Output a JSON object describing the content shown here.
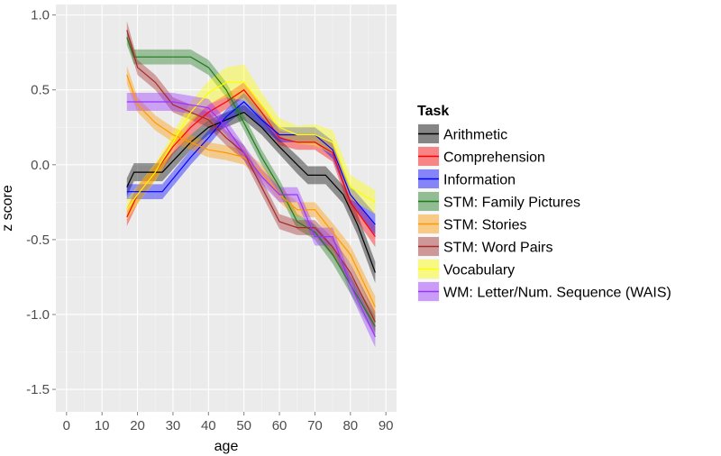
{
  "chart_data": {
    "type": "line",
    "title": "",
    "xlabel": "age",
    "ylabel": "z score",
    "xlim": [
      -3,
      93
    ],
    "ylim": [
      -1.65,
      1.07
    ],
    "x_ticks": [
      0,
      10,
      20,
      30,
      40,
      50,
      60,
      70,
      80,
      90
    ],
    "y_ticks": [
      -1.5,
      -1.0,
      -0.5,
      0.0,
      0.5,
      1.0
    ],
    "y_tick_labels": [
      "-1.5",
      "-1.0",
      "-0.5",
      "0.0",
      "0.5",
      "1.0"
    ],
    "grid": true,
    "ribbons": true,
    "legend_title": "Task",
    "legend_position": "right",
    "series": [
      {
        "name": "Arithmetic",
        "color": "#000000",
        "x": [
          17,
          19,
          27,
          35,
          40,
          45,
          50,
          55,
          60,
          65,
          68,
          73,
          78,
          82,
          87
        ],
        "y": [
          -0.15,
          -0.05,
          -0.05,
          0.15,
          0.25,
          0.3,
          0.35,
          0.25,
          0.12,
          -0.0,
          -0.07,
          -0.07,
          -0.2,
          -0.4,
          -0.72
        ],
        "band": [
          0.06,
          0.06,
          0.06,
          0.05,
          0.05,
          0.05,
          0.05,
          0.05,
          0.05,
          0.06,
          0.06,
          0.06,
          0.06,
          0.07,
          0.07
        ]
      },
      {
        "name": "Comprehension",
        "color": "#ff0000",
        "x": [
          17,
          20,
          25,
          30,
          35,
          40,
          45,
          50,
          55,
          60,
          65,
          70,
          75,
          80,
          87
        ],
        "y": [
          -0.35,
          -0.2,
          -0.05,
          0.12,
          0.25,
          0.35,
          0.42,
          0.5,
          0.35,
          0.18,
          0.15,
          0.15,
          0.08,
          -0.25,
          -0.48
        ],
        "band": [
          0.06,
          0.06,
          0.05,
          0.05,
          0.05,
          0.05,
          0.05,
          0.05,
          0.05,
          0.05,
          0.05,
          0.05,
          0.06,
          0.06,
          0.07
        ]
      },
      {
        "name": "Information",
        "color": "#0000ff",
        "x": [
          17,
          19,
          27,
          35,
          40,
          45,
          50,
          55,
          60,
          65,
          70,
          75,
          80,
          87
        ],
        "y": [
          -0.18,
          -0.18,
          -0.18,
          0.05,
          0.18,
          0.32,
          0.42,
          0.3,
          0.2,
          0.2,
          0.2,
          0.1,
          -0.2,
          -0.4
        ],
        "band": [
          0.05,
          0.05,
          0.05,
          0.05,
          0.05,
          0.05,
          0.06,
          0.05,
          0.05,
          0.05,
          0.05,
          0.06,
          0.06,
          0.07
        ]
      },
      {
        "name": "STM: Family Pictures",
        "color": "#1d7a1d",
        "x": [
          17,
          19,
          25,
          30,
          35,
          40,
          45,
          50,
          55,
          60,
          65,
          70,
          75,
          80,
          87
        ],
        "y": [
          0.85,
          0.72,
          0.72,
          0.72,
          0.72,
          0.65,
          0.5,
          0.28,
          0.05,
          -0.15,
          -0.38,
          -0.45,
          -0.6,
          -0.8,
          -1.08
        ],
        "band": [
          0.05,
          0.05,
          0.05,
          0.05,
          0.05,
          0.05,
          0.05,
          0.05,
          0.05,
          0.05,
          0.05,
          0.05,
          0.06,
          0.06,
          0.07
        ]
      },
      {
        "name": "STM: Stories",
        "color": "#ff9900",
        "x": [
          17,
          20,
          25,
          30,
          35,
          40,
          45,
          50,
          55,
          60,
          65,
          70,
          75,
          80,
          87
        ],
        "y": [
          0.6,
          0.4,
          0.28,
          0.2,
          0.15,
          0.1,
          0.08,
          0.05,
          -0.05,
          -0.2,
          -0.3,
          -0.3,
          -0.45,
          -0.6,
          -0.95
        ],
        "band": [
          0.06,
          0.05,
          0.05,
          0.05,
          0.05,
          0.05,
          0.05,
          0.05,
          0.05,
          0.05,
          0.05,
          0.05,
          0.06,
          0.06,
          0.07
        ]
      },
      {
        "name": "STM: Word Pairs",
        "color": "#a52a2a",
        "x": [
          17,
          20,
          25,
          30,
          35,
          40,
          45,
          50,
          55,
          60,
          65,
          70,
          75,
          80,
          87
        ],
        "y": [
          0.9,
          0.65,
          0.55,
          0.4,
          0.35,
          0.3,
          0.18,
          0.08,
          -0.15,
          -0.38,
          -0.42,
          -0.42,
          -0.55,
          -0.72,
          -1.05
        ],
        "band": [
          0.06,
          0.05,
          0.05,
          0.05,
          0.05,
          0.05,
          0.05,
          0.05,
          0.05,
          0.05,
          0.05,
          0.05,
          0.06,
          0.06,
          0.07
        ]
      },
      {
        "name": "Vocabulary",
        "color": "#ffff00",
        "x": [
          17,
          20,
          25,
          30,
          35,
          40,
          45,
          50,
          55,
          60,
          65,
          70,
          75,
          80,
          87
        ],
        "y": [
          -0.3,
          -0.2,
          -0.05,
          0.15,
          0.35,
          0.48,
          0.55,
          0.55,
          0.4,
          0.25,
          0.2,
          0.2,
          0.15,
          -0.15,
          -0.25
        ],
        "band": [
          0.07,
          0.06,
          0.06,
          0.06,
          0.07,
          0.08,
          0.1,
          0.12,
          0.08,
          0.06,
          0.06,
          0.07,
          0.08,
          0.08,
          0.08
        ]
      },
      {
        "name": "WM: Letter/Num. Sequence (WAIS)",
        "color": "#9933ff",
        "x": [
          17,
          20,
          25,
          30,
          35,
          40,
          45,
          50,
          55,
          60,
          65,
          70,
          75,
          80,
          87
        ],
        "y": [
          0.42,
          0.42,
          0.42,
          0.42,
          0.4,
          0.38,
          0.25,
          0.08,
          -0.08,
          -0.2,
          -0.2,
          -0.48,
          -0.48,
          -0.8,
          -1.15
        ],
        "band": [
          0.06,
          0.06,
          0.06,
          0.06,
          0.06,
          0.06,
          0.05,
          0.05,
          0.05,
          0.05,
          0.05,
          0.06,
          0.06,
          0.06,
          0.07
        ]
      }
    ]
  }
}
